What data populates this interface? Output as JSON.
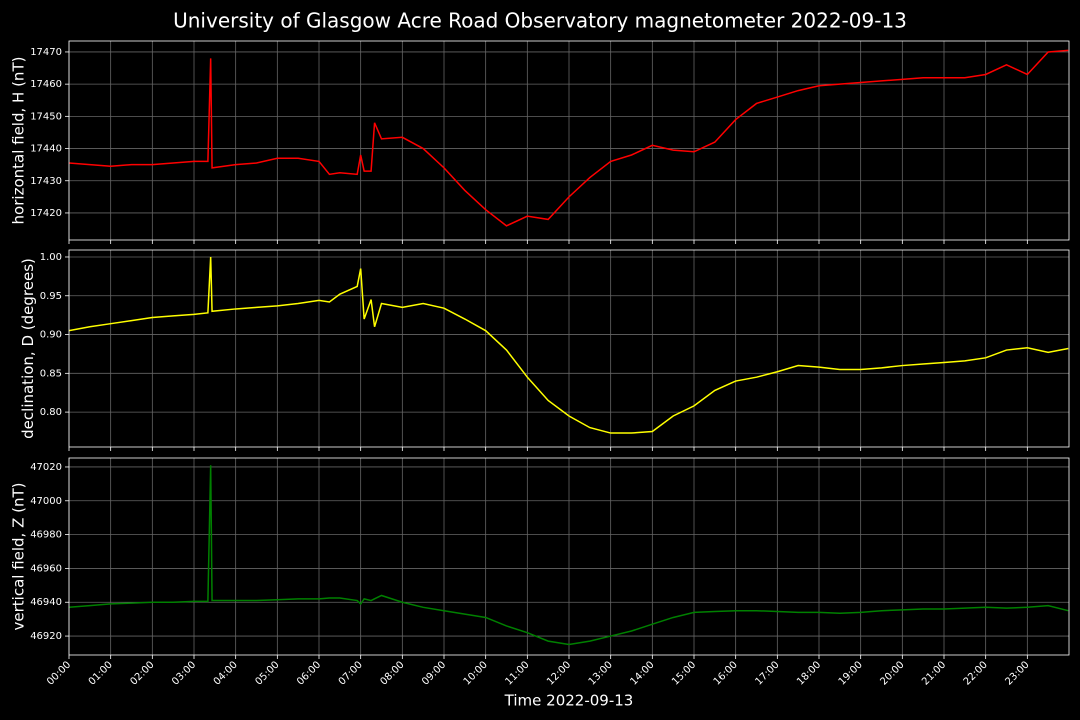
{
  "chart_data": [
    {
      "type": "line",
      "title": "University of Glasgow Acre Road Observatory magnetometer 2022-09-13",
      "ylabel": "horizontal field, H (nT)",
      "color": "#ff0000",
      "grid": true,
      "xlim": [
        "00:00",
        "24:00"
      ],
      "ylim": [
        17411.6,
        17473.4
      ],
      "yticks": [
        17420,
        17430,
        17440,
        17450,
        17460,
        17470
      ],
      "x": [
        "00:00",
        "00:30",
        "01:00",
        "01:30",
        "02:00",
        "02:30",
        "03:00",
        "03:20",
        "03:24",
        "03:26",
        "04:00",
        "04:30",
        "05:00",
        "05:30",
        "06:00",
        "06:15",
        "06:30",
        "06:55",
        "07:00",
        "07:05",
        "07:15",
        "07:20",
        "07:30",
        "08:00",
        "08:30",
        "09:00",
        "09:30",
        "10:00",
        "10:30",
        "11:00",
        "11:30",
        "12:00",
        "12:30",
        "13:00",
        "13:30",
        "14:00",
        "14:30",
        "15:00",
        "15:30",
        "16:00",
        "16:30",
        "17:00",
        "17:30",
        "18:00",
        "18:30",
        "19:00",
        "19:30",
        "20:00",
        "20:30",
        "21:00",
        "21:30",
        "22:00",
        "22:30",
        "23:00",
        "23:30",
        "23:59"
      ],
      "values": [
        17435.5,
        17435,
        17434.5,
        17435,
        17435,
        17435.5,
        17436,
        17436,
        17468,
        17434,
        17435,
        17435.5,
        17437,
        17437,
        17436,
        17432,
        17432.5,
        17432,
        17438,
        17433,
        17433,
        17448,
        17443,
        17443.5,
        17440,
        17434,
        17427,
        17421,
        17416,
        17419,
        17418,
        17425,
        17431,
        17436,
        17438,
        17441,
        17439.5,
        17439,
        17442,
        17449,
        17454,
        17456,
        17458,
        17459.5,
        17460,
        17460.5,
        17461,
        17461.5,
        17462,
        17462,
        17462,
        17463,
        17466,
        17463,
        17470,
        17470.5
      ]
    },
    {
      "type": "line",
      "ylabel": "declination, D (degrees)",
      "color": "#ffff00",
      "grid": true,
      "xlim": [
        "00:00",
        "24:00"
      ],
      "ylim": [
        0.755,
        1.009
      ],
      "yticks": [
        {
          "value": 0.8,
          "label": "0.80"
        },
        0.85,
        {
          "value": 0.9,
          "label": "0.90"
        },
        0.95,
        {
          "value": 1.0,
          "label": "1.00"
        }
      ],
      "x": [
        "00:00",
        "00:30",
        "01:00",
        "01:30",
        "02:00",
        "02:30",
        "03:00",
        "03:20",
        "03:24",
        "03:26",
        "04:00",
        "04:30",
        "05:00",
        "05:30",
        "06:00",
        "06:15",
        "06:30",
        "06:55",
        "07:00",
        "07:05",
        "07:15",
        "07:20",
        "07:30",
        "08:00",
        "08:30",
        "09:00",
        "09:30",
        "10:00",
        "10:30",
        "11:00",
        "11:30",
        "12:00",
        "12:30",
        "13:00",
        "13:30",
        "14:00",
        "14:30",
        "15:00",
        "15:30",
        "16:00",
        "16:30",
        "17:00",
        "17:30",
        "18:00",
        "18:30",
        "19:00",
        "19:30",
        "20:00",
        "20:30",
        "21:00",
        "21:30",
        "22:00",
        "22:30",
        "23:00",
        "23:30",
        "23:59"
      ],
      "values": [
        0.905,
        0.91,
        0.914,
        0.918,
        0.922,
        0.924,
        0.926,
        0.928,
        1.0,
        0.93,
        0.933,
        0.935,
        0.937,
        0.94,
        0.944,
        0.942,
        0.952,
        0.962,
        0.985,
        0.92,
        0.945,
        0.91,
        0.94,
        0.935,
        0.94,
        0.934,
        0.92,
        0.905,
        0.88,
        0.845,
        0.815,
        0.795,
        0.78,
        0.773,
        0.773,
        0.775,
        0.795,
        0.808,
        0.828,
        0.84,
        0.845,
        0.852,
        0.86,
        0.858,
        0.855,
        0.855,
        0.857,
        0.86,
        0.862,
        0.864,
        0.866,
        0.87,
        0.88,
        0.883,
        0.877,
        0.882
      ]
    },
    {
      "type": "line",
      "ylabel": "vertical field, Z (nT)",
      "xlabel": "Time 2022-09-13",
      "color": "#008000",
      "grid": true,
      "xlim": [
        "00:00",
        "24:00"
      ],
      "ylim": [
        46908.8,
        47025.3
      ],
      "yticks": [
        46920,
        46940,
        46960,
        46980,
        47000,
        47020
      ],
      "xticks": [
        "00:00",
        "01:00",
        "02:00",
        "03:00",
        "04:00",
        "05:00",
        "06:00",
        "07:00",
        "08:00",
        "09:00",
        "10:00",
        "11:00",
        "12:00",
        "13:00",
        "14:00",
        "15:00",
        "16:00",
        "17:00",
        "18:00",
        "19:00",
        "20:00",
        "21:00",
        "22:00",
        "23:00"
      ],
      "x": [
        "00:00",
        "00:30",
        "01:00",
        "01:30",
        "02:00",
        "02:30",
        "03:00",
        "03:20",
        "03:24",
        "03:26",
        "04:00",
        "04:30",
        "05:00",
        "05:30",
        "06:00",
        "06:15",
        "06:30",
        "06:55",
        "07:00",
        "07:05",
        "07:15",
        "07:20",
        "07:30",
        "08:00",
        "08:30",
        "09:00",
        "09:30",
        "10:00",
        "10:30",
        "11:00",
        "11:30",
        "12:00",
        "12:30",
        "13:00",
        "13:30",
        "14:00",
        "14:30",
        "15:00",
        "15:30",
        "16:00",
        "16:30",
        "17:00",
        "17:30",
        "18:00",
        "18:30",
        "19:00",
        "19:30",
        "20:00",
        "20:30",
        "21:00",
        "21:30",
        "22:00",
        "22:30",
        "23:00",
        "23:30",
        "23:59"
      ],
      "values": [
        46937,
        46938,
        46939,
        46939.5,
        46940,
        46940,
        46940.5,
        46940.5,
        47021,
        46941,
        46941,
        46941,
        46941.5,
        46942,
        46942,
        46942.5,
        46942.5,
        46941,
        46939,
        46942,
        46941,
        46942,
        46944,
        46940,
        46937,
        46935,
        46933,
        46931,
        46926,
        46922,
        46917,
        46915,
        46917,
        46920,
        46923,
        46927,
        46931,
        46934,
        46934.5,
        46935,
        46935,
        46934.5,
        46934,
        46934,
        46933.5,
        46934,
        46935,
        46935.5,
        46936,
        46936,
        46936.5,
        46937,
        46936.5,
        46937,
        46938,
        46935
      ]
    }
  ]
}
